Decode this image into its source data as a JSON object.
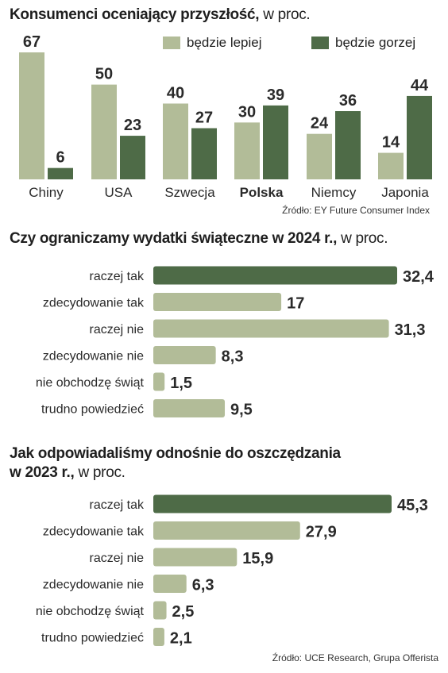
{
  "colors": {
    "light": "#b2bc98",
    "dark": "#4e6b47",
    "text": "#2a2a2a"
  },
  "chart_data": [
    {
      "type": "bar",
      "title": "Konsumenci oceniający przyszłość,",
      "title_unit": "w proc.",
      "categories": [
        "Chiny",
        "USA",
        "Szwecja",
        "Polska",
        "Niemcy",
        "Japonia"
      ],
      "highlight_category": "Polska",
      "series": [
        {
          "name": "będzie lepiej",
          "values": [
            67,
            50,
            40,
            30,
            24,
            14
          ],
          "color": "#b2bc98"
        },
        {
          "name": "będzie gorzej",
          "values": [
            6,
            23,
            27,
            39,
            36,
            44
          ],
          "color": "#4e6b47"
        }
      ],
      "ylim": [
        0,
        67
      ],
      "legend": "top-right",
      "source": "Źródło: EY Future Consumer Index"
    },
    {
      "type": "bar",
      "orientation": "horizontal",
      "title": "Czy ograniczamy wydatki świąteczne w 2024 r.,",
      "title_unit": "w proc.",
      "categories": [
        "raczej tak",
        "zdecydowanie tak",
        "raczej nie",
        "zdecydowanie nie",
        "nie obchodzę świąt",
        "trudno powiedzieć"
      ],
      "values": [
        32.4,
        17,
        31.3,
        8.3,
        1.5,
        9.5
      ],
      "labels": [
        "32,4",
        "17",
        "31,3",
        "8,3",
        "1,5",
        "9,5"
      ],
      "highlight_index": 0
    },
    {
      "type": "bar",
      "orientation": "horizontal",
      "title_lines": [
        "Jak odpowiadaliśmy odnośnie do oszczędzania",
        "w 2023 r.,"
      ],
      "title_unit": "w proc.",
      "categories": [
        "raczej tak",
        "zdecydowanie tak",
        "raczej nie",
        "zdecydowanie nie",
        "nie obchodzę świąt",
        "trudno powiedzieć"
      ],
      "values": [
        45.3,
        27.9,
        15.9,
        6.3,
        2.5,
        2.1
      ],
      "labels": [
        "45,3",
        "27,9",
        "15,9",
        "6,3",
        "2,5",
        "2,1"
      ],
      "highlight_index": 0,
      "source": "Źródło: UCE Research, Grupa Offerista"
    }
  ]
}
